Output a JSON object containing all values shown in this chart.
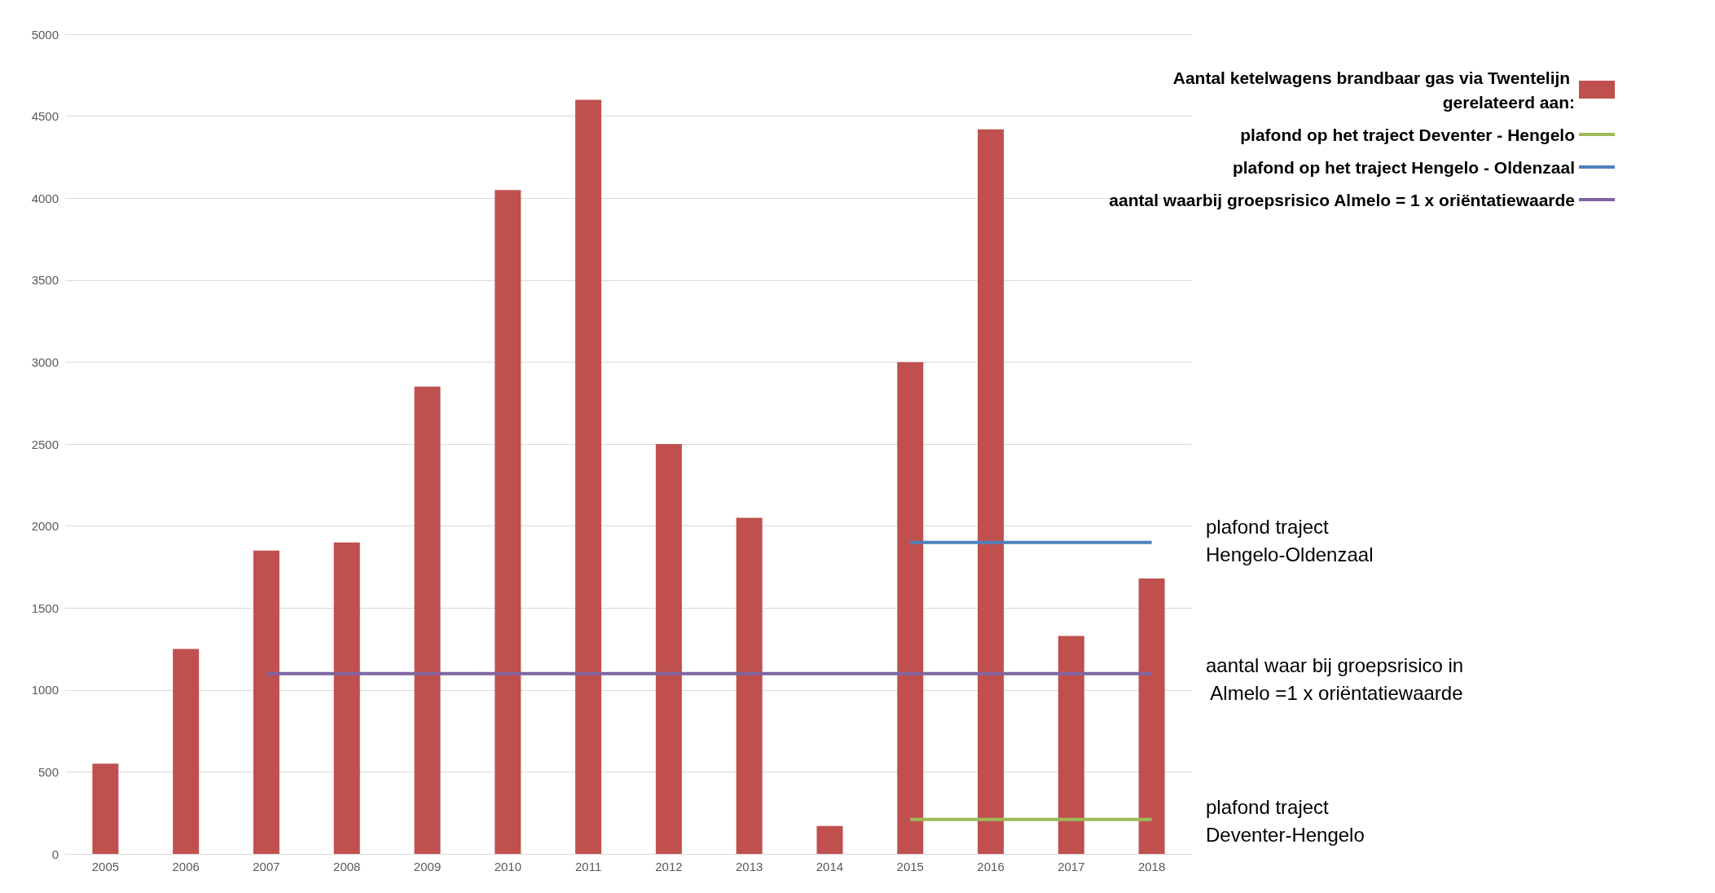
{
  "chart_data": {
    "type": "bar",
    "categories": [
      "2005",
      "2006",
      "2007",
      "2008",
      "2009",
      "2010",
      "2011",
      "2012",
      "2013",
      "2014",
      "2015",
      "2016",
      "2017",
      "2018"
    ],
    "series": [
      {
        "name": "Aantal ketelwagens brandbaar gas via Twentelijn gerelateerd aan:",
        "color": "#c0504d",
        "values": [
          550,
          1250,
          1850,
          1900,
          2850,
          4050,
          4600,
          2500,
          2050,
          170,
          3000,
          4420,
          1330,
          1680
        ]
      },
      {
        "type": "line",
        "name": "plafond op het traject Deventer - Hengelo",
        "color": "#9bbb59",
        "values": [
          null,
          null,
          null,
          null,
          null,
          null,
          null,
          null,
          null,
          null,
          210,
          210,
          210,
          210
        ]
      },
      {
        "type": "line",
        "name": "plafond op het traject Hengelo - Oldenzaal",
        "color": "#4f81bd",
        "values": [
          null,
          null,
          null,
          null,
          null,
          null,
          null,
          null,
          null,
          null,
          1900,
          1900,
          1900,
          1900
        ]
      },
      {
        "type": "line",
        "name": "aantal waarbij groepsrisico Almelo = 1 x oriëntatiewaarde",
        "color": "#8064a2",
        "values": [
          null,
          null,
          1100,
          1100,
          1100,
          1100,
          1100,
          1100,
          1100,
          1100,
          1100,
          1100,
          1100,
          1100
        ]
      }
    ],
    "ylim": [
      0,
      5000
    ],
    "yticks": [
      0,
      500,
      1000,
      1500,
      2000,
      2500,
      3000,
      3500,
      4000,
      4500,
      5000
    ],
    "grid": "y",
    "legend": "top right",
    "marker": "none",
    "line_style": "solid",
    "annotations": [
      "plafond traject Hengelo-Oldenzaal",
      "aantal waar bij groepsrisico in Almelo =1 x oriëntatiewaarde",
      "plafond traject Deventer-Hengelo"
    ]
  }
}
